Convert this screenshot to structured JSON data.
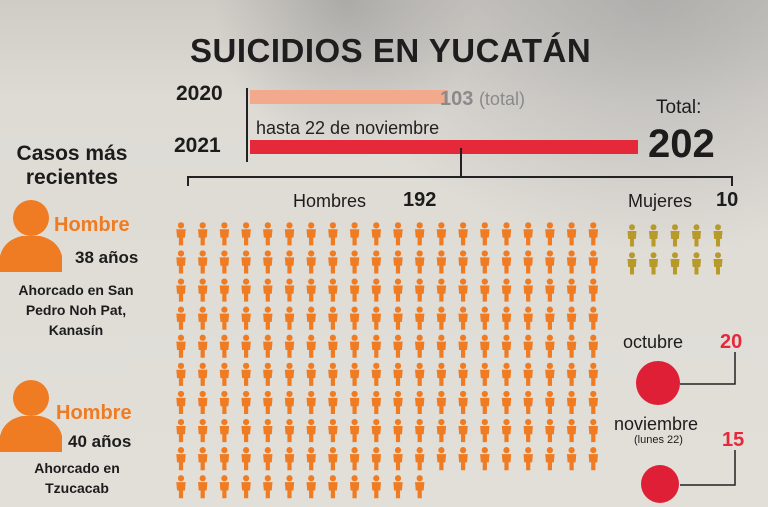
{
  "title": "SUICIDIOS EN YUCATÁN",
  "chart_data": {
    "type": "bar",
    "categories": [
      "2020",
      "2021"
    ],
    "values": [
      103,
      202
    ],
    "value_labels": [
      "103",
      "202"
    ],
    "value_suffix_2020": "(total)",
    "annotation_2021": "hasta 22 de noviembre",
    "total_label": "Total:",
    "colors": {
      "2020": "#f3a98c",
      "2021": "#e5283a"
    },
    "breakdown_2021": {
      "men": {
        "label": "Hombres",
        "value": 192,
        "color": "#ef7b22"
      },
      "women": {
        "label": "Mujeres",
        "value": 10,
        "color": "#b89a2a"
      }
    },
    "monthly": [
      {
        "month": "octubre",
        "sub": "",
        "value": 20
      },
      {
        "month": "noviembre",
        "sub": "(lunes 22)",
        "value": 15
      }
    ]
  },
  "recent_cases": {
    "heading": "Casos más recientes",
    "cases": [
      {
        "gender": "Hombre",
        "age": "38 años",
        "desc": "Ahorcado en San Pedro Noh Pat, Kanasín"
      },
      {
        "gender": "Hombre",
        "age": "40 años",
        "desc": "Ahorcado en Tzucacab"
      }
    ]
  }
}
